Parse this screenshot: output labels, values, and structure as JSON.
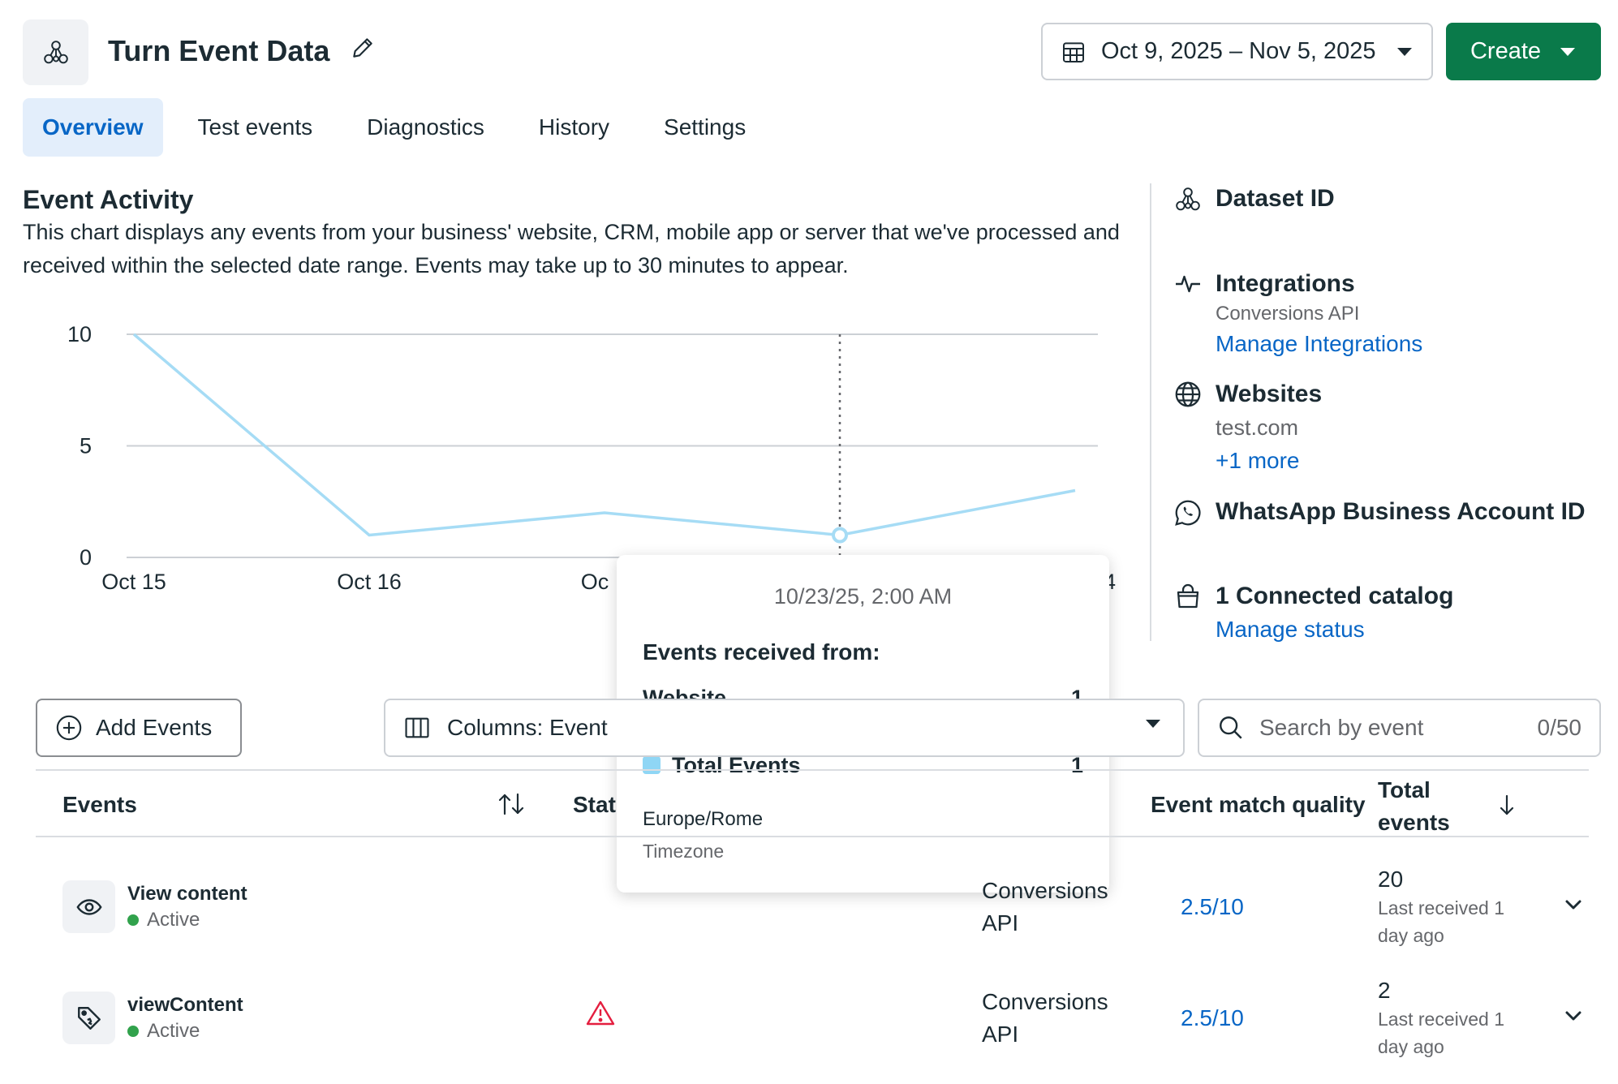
{
  "header": {
    "title": "Turn Event Data",
    "date_range": "Oct 9, 2025 – Nov 5, 2025",
    "create_label": "Create"
  },
  "tabs": [
    {
      "label": "Overview",
      "active": true
    },
    {
      "label": "Test events"
    },
    {
      "label": "Diagnostics"
    },
    {
      "label": "History"
    },
    {
      "label": "Settings"
    }
  ],
  "event_activity": {
    "title": "Event Activity",
    "description": "This chart displays any events from your business' website, CRM, mobile app or server that we've processed and received within the selected date range. Events may take up to 30 minutes to appear."
  },
  "chart_data": {
    "type": "line",
    "title": "",
    "xlabel": "",
    "ylabel": "",
    "x_tick_labels": [
      "Oct 15",
      "Oct 16",
      "Oc",
      "4"
    ],
    "y_ticks": [
      0,
      5,
      10
    ],
    "ylim": [
      0,
      10
    ],
    "grid": true,
    "series": [
      {
        "values": [
          10,
          1,
          2,
          1,
          3
        ],
        "color": "#a6dcf5"
      }
    ],
    "highlight_index": 3
  },
  "tooltip": {
    "date": "10/23/25, 2:00 AM",
    "heading": "Events received from:",
    "rows": [
      {
        "label": "Website",
        "value": "1"
      }
    ],
    "total_label": "Total Events",
    "total_value": "1",
    "timezone": "Europe/Rome",
    "timezone_label": "Timezone",
    "swatch_color": "#8fd6f5"
  },
  "right_panel": {
    "dataset_id_label": "Dataset ID",
    "integrations_label": "Integrations",
    "integrations_sub": "Conversions API",
    "manage_integrations": "Manage Integrations",
    "websites_label": "Websites",
    "website": "test.com",
    "more": "+1 more",
    "whatsapp_label": "WhatsApp Business Account ID",
    "catalog_label": "1 Connected catalog",
    "manage_status": "Manage status"
  },
  "controls": {
    "add_events": "Add Events",
    "columns": "Columns: Event",
    "search_placeholder": "Search by event",
    "search_count": "0/50"
  },
  "table": {
    "headers": {
      "events": "Events",
      "status": "Stat",
      "emq": "Event match quality",
      "total": "Total events"
    },
    "rows": [
      {
        "icon": "eye-icon",
        "name": "View content",
        "status": "Active",
        "source_line1": "Conversions",
        "source_line2": "API",
        "warning": false,
        "emq": "2.5/10",
        "total": "20",
        "last_received": "Last received 1 day ago"
      },
      {
        "icon": "tag-icon",
        "name": "viewContent",
        "status": "Active",
        "source_line1": "Conversions",
        "source_line2": "API",
        "warning": true,
        "emq": "2.5/10",
        "total": "2",
        "last_received": "Last received 1 day ago"
      }
    ]
  },
  "colors": {
    "accent": "#0866c6",
    "create_button": "#0a7a4a",
    "active_dot": "#31a24c",
    "warning": "#e41e3f",
    "chart_line": "#a6dcf5"
  }
}
